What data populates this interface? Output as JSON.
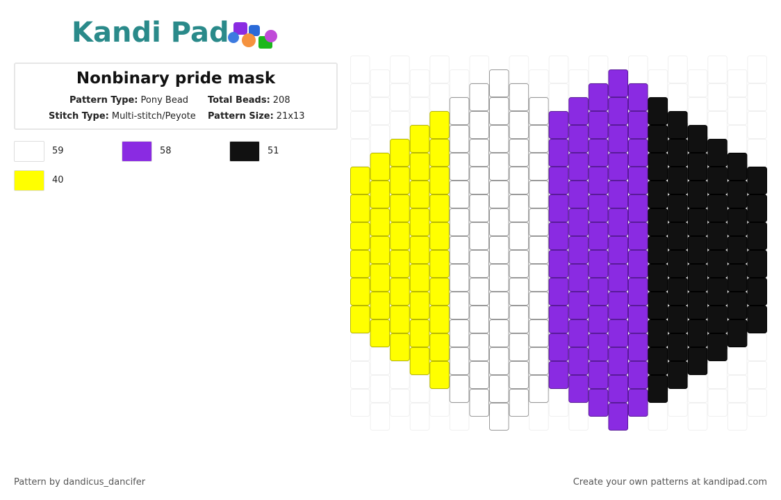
{
  "logo": "Kandi Pad",
  "title": "Nonbinary pride mask",
  "info": [
    {
      "label": "Pattern Type:",
      "value": "Pony Bead"
    },
    {
      "label": "Total Beads:",
      "value": "208"
    },
    {
      "label": "Stitch Type:",
      "value": "Multi-stitch/Peyote"
    },
    {
      "label": "Pattern Size:",
      "value": "21x13"
    }
  ],
  "legend": [
    {
      "color": "#ffffff",
      "count": "59"
    },
    {
      "color": "#8a2be2",
      "count": "58"
    },
    {
      "color": "#111111",
      "count": "51"
    },
    {
      "color": "#ffff00",
      "count": "40"
    }
  ],
  "palette": {
    "W": "#ffffff",
    "P": "#8a2be2",
    "B": "#111111",
    "Y": "#ffff00"
  },
  "columns": [
    "....YYYYYY...",
    "...YYYYYYY...",
    "...YYYYYYYY..",
    "..YYYYYYYYY..",
    "..YYYYYYYYYY.",
    ".WWWWWWWWWWW.",
    ".WWWWWWWWWWWW",
    "WWWWWWWWWWWWW",
    ".WWWWWWWWWWWW",
    ".WWWWWWWWWWW.",
    "..PPPPPPPPPP.",
    ".PPPPPPPPPPP.",
    ".PPPPPPPPPPPP",
    "PPPPPPPPPPPPP",
    ".PPPPPPPPPPPP",
    ".BBBBBBBBBBB.",
    "..BBBBBBBBBB.",
    "..BBBBBBBBB..",
    "...BBBBBBBB..",
    "...BBBBBBB...",
    "....BBBBBB..."
  ],
  "footer": {
    "left": "Pattern by dandicus_dancifer",
    "right": "Create your own patterns at kandipad.com"
  }
}
